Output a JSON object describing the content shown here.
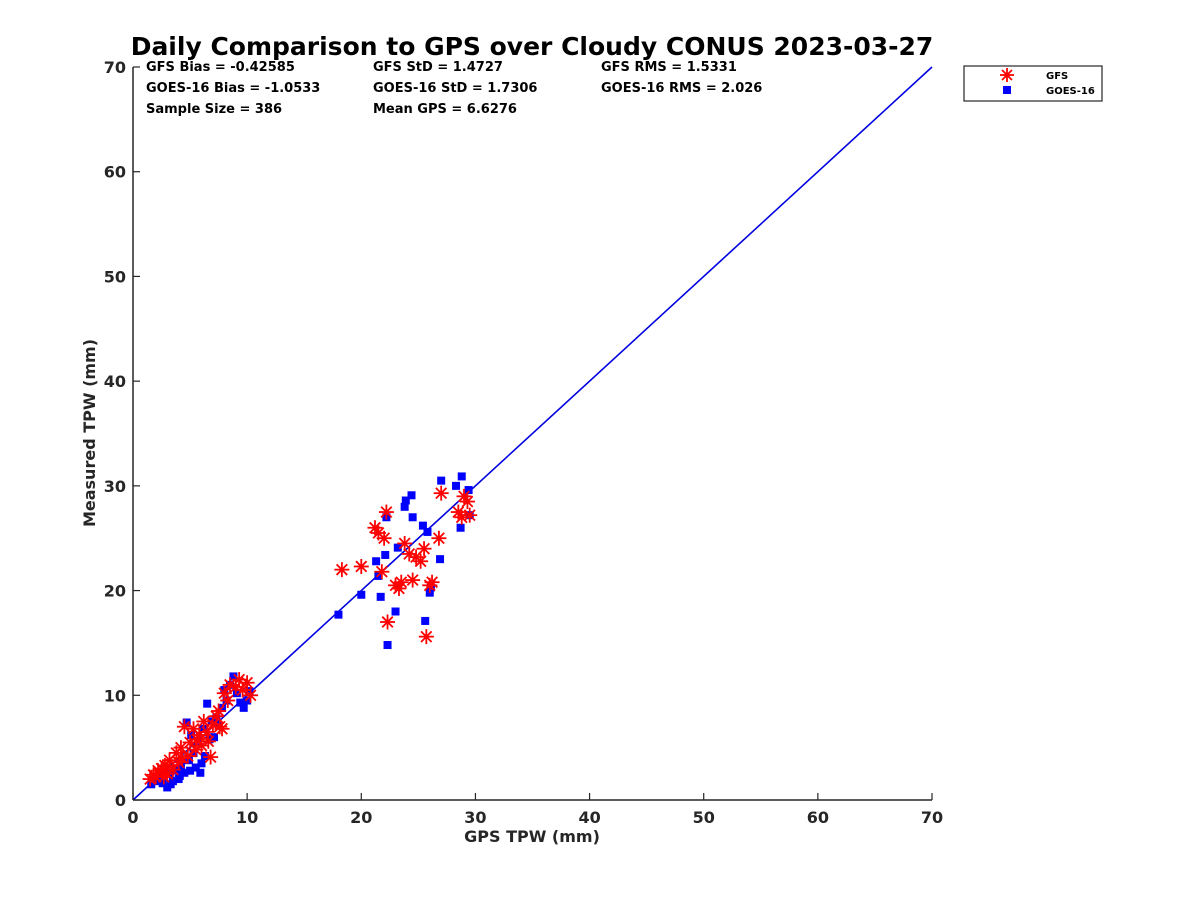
{
  "chart_data": {
    "type": "scatter",
    "title": "Daily Comparison to GPS over Cloudy CONUS 2023-03-27",
    "xlabel": "GPS TPW (mm)",
    "ylabel": "Measured TPW (mm)",
    "xlim": [
      0,
      70
    ],
    "ylim": [
      0,
      70
    ],
    "xticks": [
      "0",
      "10",
      "20",
      "30",
      "40",
      "50",
      "60",
      "70"
    ],
    "yticks": [
      "0",
      "10",
      "20",
      "30",
      "40",
      "50",
      "60",
      "70"
    ],
    "grid": false,
    "legend_position": "outside top-right",
    "stats": [
      [
        "GFS Bias = -0.42585",
        "GFS StD = 1.4727",
        "GFS RMS = 1.5331"
      ],
      [
        "GOES-16 Bias = -1.0533",
        "GOES-16 StD = 1.7306",
        "GOES-16 RMS = 2.026"
      ],
      [
        "Sample Size = 386",
        "Mean GPS = 6.6276",
        ""
      ]
    ],
    "reference_line": {
      "x": [
        0,
        70
      ],
      "y": [
        0,
        70
      ],
      "color": "#0000e0"
    },
    "series": [
      {
        "name": "GFS",
        "marker": "asterisk",
        "color": "#ff0000",
        "points": [
          [
            1.5,
            2.0
          ],
          [
            1.8,
            2.4
          ],
          [
            2.0,
            2.2
          ],
          [
            2.2,
            2.8
          ],
          [
            2.5,
            3.0
          ],
          [
            2.8,
            3.3
          ],
          [
            3.0,
            2.5
          ],
          [
            3.2,
            3.8
          ],
          [
            3.5,
            2.9
          ],
          [
            3.8,
            4.5
          ],
          [
            4.0,
            3.6
          ],
          [
            4.2,
            5.0
          ],
          [
            4.5,
            7.0
          ],
          [
            4.8,
            4.2
          ],
          [
            5.0,
            5.5
          ],
          [
            5.3,
            6.8
          ],
          [
            5.5,
            4.8
          ],
          [
            5.8,
            6.2
          ],
          [
            6.0,
            5.2
          ],
          [
            6.2,
            7.5
          ],
          [
            6.5,
            6.5
          ],
          [
            6.8,
            4.1
          ],
          [
            7.0,
            7.2
          ],
          [
            7.3,
            8.0
          ],
          [
            7.5,
            8.5
          ],
          [
            7.8,
            6.8
          ],
          [
            8.0,
            10.2
          ],
          [
            8.3,
            9.5
          ],
          [
            8.5,
            11.0
          ],
          [
            9.0,
            10.8
          ],
          [
            9.3,
            11.5
          ],
          [
            9.6,
            10.5
          ],
          [
            10.0,
            11.2
          ],
          [
            10.3,
            10.0
          ],
          [
            3.0,
            3.2
          ],
          [
            2.7,
            2.2
          ],
          [
            4.3,
            4.0
          ],
          [
            5.6,
            5.8
          ],
          [
            6.6,
            5.6
          ],
          [
            7.6,
            7.0
          ],
          [
            18.3,
            22.0
          ],
          [
            20.0,
            22.3
          ],
          [
            21.2,
            26.0
          ],
          [
            21.5,
            25.5
          ],
          [
            21.8,
            21.8
          ],
          [
            22.0,
            25.0
          ],
          [
            22.2,
            27.5
          ],
          [
            22.3,
            17.0
          ],
          [
            23.0,
            20.5
          ],
          [
            23.3,
            20.2
          ],
          [
            23.5,
            20.8
          ],
          [
            23.8,
            24.5
          ],
          [
            24.2,
            23.5
          ],
          [
            24.5,
            21.0
          ],
          [
            24.8,
            23.2
          ],
          [
            25.2,
            22.8
          ],
          [
            25.5,
            24.0
          ],
          [
            25.7,
            15.6
          ],
          [
            26.0,
            20.5
          ],
          [
            26.2,
            20.8
          ],
          [
            26.8,
            25.0
          ],
          [
            27.0,
            29.3
          ],
          [
            28.5,
            27.5
          ],
          [
            28.8,
            27.0
          ],
          [
            29.0,
            29.0
          ],
          [
            29.3,
            28.5
          ],
          [
            29.5,
            27.2
          ]
        ]
      },
      {
        "name": "GOES-16",
        "marker": "square",
        "color": "#0000ff",
        "points": [
          [
            1.6,
            1.5
          ],
          [
            2.0,
            1.8
          ],
          [
            2.3,
            2.0
          ],
          [
            2.6,
            1.6
          ],
          [
            3.0,
            1.2
          ],
          [
            3.2,
            2.5
          ],
          [
            3.5,
            1.8
          ],
          [
            3.8,
            2.8
          ],
          [
            4.0,
            2.0
          ],
          [
            4.2,
            3.2
          ],
          [
            4.5,
            2.6
          ],
          [
            4.7,
            7.4
          ],
          [
            4.9,
            3.8
          ],
          [
            5.1,
            6.2
          ],
          [
            5.3,
            4.5
          ],
          [
            5.5,
            3.1
          ],
          [
            5.7,
            5.5
          ],
          [
            5.9,
            2.6
          ],
          [
            6.1,
            6.8
          ],
          [
            6.3,
            4.2
          ],
          [
            6.5,
            9.2
          ],
          [
            6.7,
            5.8
          ],
          [
            6.9,
            7.5
          ],
          [
            7.1,
            6.0
          ],
          [
            7.3,
            7.8
          ],
          [
            7.5,
            7.1
          ],
          [
            7.8,
            8.8
          ],
          [
            8.0,
            10.5
          ],
          [
            8.2,
            9.5
          ],
          [
            8.5,
            11.0
          ],
          [
            8.8,
            11.8
          ],
          [
            9.1,
            10.2
          ],
          [
            9.4,
            9.3
          ],
          [
            9.7,
            8.8
          ],
          [
            10.0,
            9.5
          ],
          [
            10.2,
            10.4
          ],
          [
            3.3,
            1.5
          ],
          [
            4.1,
            2.3
          ],
          [
            5.0,
            2.8
          ],
          [
            6.0,
            3.5
          ],
          [
            18.0,
            17.7
          ],
          [
            20.0,
            19.6
          ],
          [
            21.3,
            22.8
          ],
          [
            21.5,
            21.4
          ],
          [
            21.7,
            19.4
          ],
          [
            22.1,
            23.4
          ],
          [
            22.2,
            27.0
          ],
          [
            22.3,
            14.8
          ],
          [
            23.0,
            18.0
          ],
          [
            23.2,
            24.1
          ],
          [
            23.8,
            28.0
          ],
          [
            23.9,
            28.6
          ],
          [
            24.4,
            29.1
          ],
          [
            24.5,
            27.0
          ],
          [
            25.4,
            26.2
          ],
          [
            25.6,
            17.1
          ],
          [
            25.8,
            25.6
          ],
          [
            26.0,
            19.8
          ],
          [
            26.1,
            20.3
          ],
          [
            26.9,
            23.0
          ],
          [
            27.0,
            30.5
          ],
          [
            28.3,
            30.0
          ],
          [
            28.7,
            26.0
          ],
          [
            28.8,
            30.9
          ],
          [
            29.4,
            29.6
          ],
          [
            29.5,
            27.2
          ]
        ]
      }
    ]
  }
}
